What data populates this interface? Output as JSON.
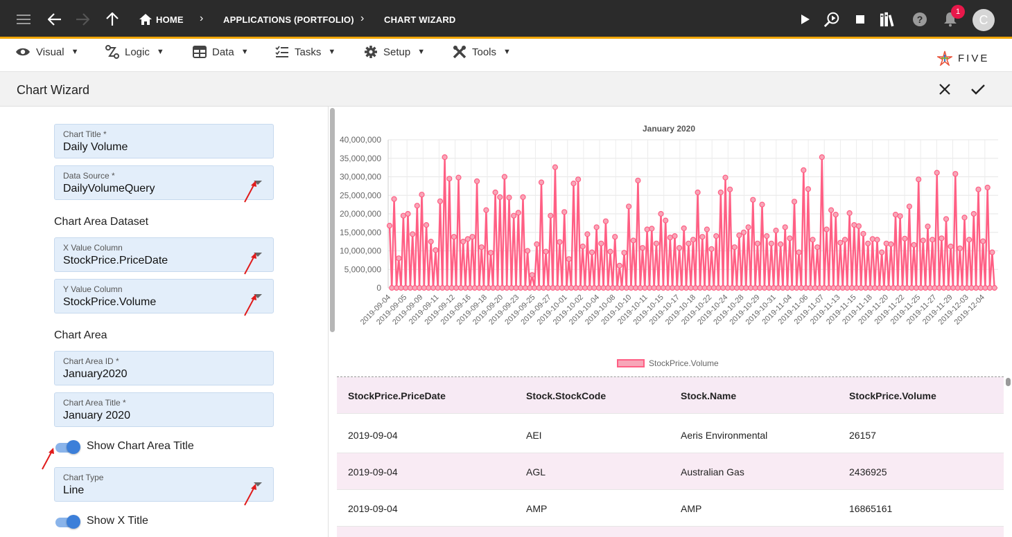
{
  "topbar": {
    "crumbs": [
      "HOME",
      "APPLICATIONS (PORTFOLIO)",
      "CHART WIZARD"
    ],
    "notification_count": "1",
    "avatar_initial": "C",
    "accent": "#f0a500"
  },
  "menu": {
    "items": [
      "Visual",
      "Logic",
      "Data",
      "Tasks",
      "Setup",
      "Tools"
    ],
    "logo_text": "FIVE"
  },
  "header": {
    "title": "Chart Wizard"
  },
  "form": {
    "chart_title": {
      "label": "Chart Title *",
      "value": "Daily Volume"
    },
    "data_source": {
      "label": "Data Source *",
      "value": "DailyVolumeQuery"
    },
    "section_dataset": "Chart Area Dataset",
    "x_column": {
      "label": "X Value Column",
      "value": "StockPrice.PriceDate"
    },
    "y_column": {
      "label": "Y Value Column",
      "value": "StockPrice.Volume"
    },
    "section_area": "Chart Area",
    "area_id": {
      "label": "Chart Area ID *",
      "value": "January2020"
    },
    "area_title": {
      "label": "Chart Area Title *",
      "value": "January 2020"
    },
    "show_area_title": {
      "label": "Show Chart Area Title",
      "on": true
    },
    "chart_type": {
      "label": "Chart Type",
      "value": "Line"
    },
    "show_x_title": {
      "label": "Show X Title",
      "on": true
    }
  },
  "chart_data": {
    "type": "line",
    "title": "January 2020",
    "ylim": [
      0,
      40000000
    ],
    "y_ticks": [
      "0",
      "5,000,000",
      "10,000,000",
      "15,000,000",
      "20,000,000",
      "25,000,000",
      "30,000,000",
      "35,000,000",
      "40,000,000"
    ],
    "x_ticks": [
      "2019-09-04",
      "2019-09-05",
      "2019-09-09",
      "2019-09-11",
      "2019-09-12",
      "2019-09-16",
      "2019-09-18",
      "2019-09-20",
      "2019-09-23",
      "2019-09-25",
      "2019-09-27",
      "2019-10-01",
      "2019-10-02",
      "2019-10-04",
      "2019-10-08",
      "2019-10-10",
      "2019-10-11",
      "2019-10-15",
      "2019-10-17",
      "2019-10-18",
      "2019-10-22",
      "2019-10-24",
      "2019-10-28",
      "2019-10-29",
      "2019-10-31",
      "2019-11-04",
      "2019-11-06",
      "2019-11-07",
      "2019-11-13",
      "2019-11-15",
      "2019-11-18",
      "2019-11-20",
      "2019-11-22",
      "2019-11-25",
      "2019-11-27",
      "2019-11-29",
      "2019-12-03",
      "2019-12-04"
    ],
    "grid": true,
    "legend_position": "bottom",
    "series": [
      {
        "name": "StockPrice.Volume",
        "color": "#ff5f84",
        "peak_values": [
          16800000,
          24000000,
          8000000,
          19500000,
          20000000,
          14500000,
          22200000,
          25200000,
          17000000,
          12500000,
          10200000,
          23400000,
          35300000,
          29500000,
          13800000,
          29800000,
          12500000,
          13200000,
          13800000,
          28800000,
          11000000,
          21000000,
          9500000,
          25800000,
          24500000,
          30000000,
          24400000,
          19500000,
          20300000,
          24500000,
          10000000,
          3500000,
          11800000,
          28500000,
          9800000,
          19500000,
          32600000,
          12400000,
          20500000,
          7800000,
          28200000,
          29300000,
          11200000,
          14500000,
          9600000,
          16400000,
          12000000,
          18000000,
          9800000,
          13800000,
          6000000,
          9500000,
          22000000,
          12800000,
          29000000,
          10800000,
          15800000,
          16000000,
          12000000,
          20000000,
          18200000,
          13600000,
          14000000,
          10800000,
          16100000,
          12000000,
          13000000,
          25800000,
          13800000,
          15800000,
          10500000,
          14000000,
          25800000,
          29800000,
          26600000,
          11000000,
          14200000,
          15000000,
          16400000,
          23800000,
          12000000,
          22500000,
          14000000,
          12000000,
          15500000,
          11800000,
          16400000,
          13400000,
          23300000,
          9600000,
          31800000,
          26700000,
          13000000,
          11000000,
          35300000,
          15800000,
          21000000,
          19800000,
          12200000,
          13000000,
          20200000,
          17000000,
          16700000,
          14600000,
          12000000,
          13200000,
          13000000,
          9600000,
          12000000,
          11800000,
          19800000,
          19400000,
          13300000,
          22000000,
          11600000,
          29300000,
          12800000,
          16600000,
          13000000,
          31100000,
          13400000,
          18600000,
          11200000,
          30800000,
          10700000,
          19000000,
          13000000,
          20000000,
          26600000,
          12600000,
          27100000,
          9600000
        ]
      }
    ]
  },
  "table": {
    "headers": [
      "StockPrice.PriceDate",
      "Stock.StockCode",
      "Stock.Name",
      "StockPrice.Volume"
    ],
    "rows": [
      [
        "2019-09-04",
        "AEI",
        "Aeris Environmental",
        "26157"
      ],
      [
        "2019-09-04",
        "AGL",
        "Australian Gas",
        "2436925"
      ],
      [
        "2019-09-04",
        "AMP",
        "AMP",
        "16865161"
      ]
    ]
  }
}
